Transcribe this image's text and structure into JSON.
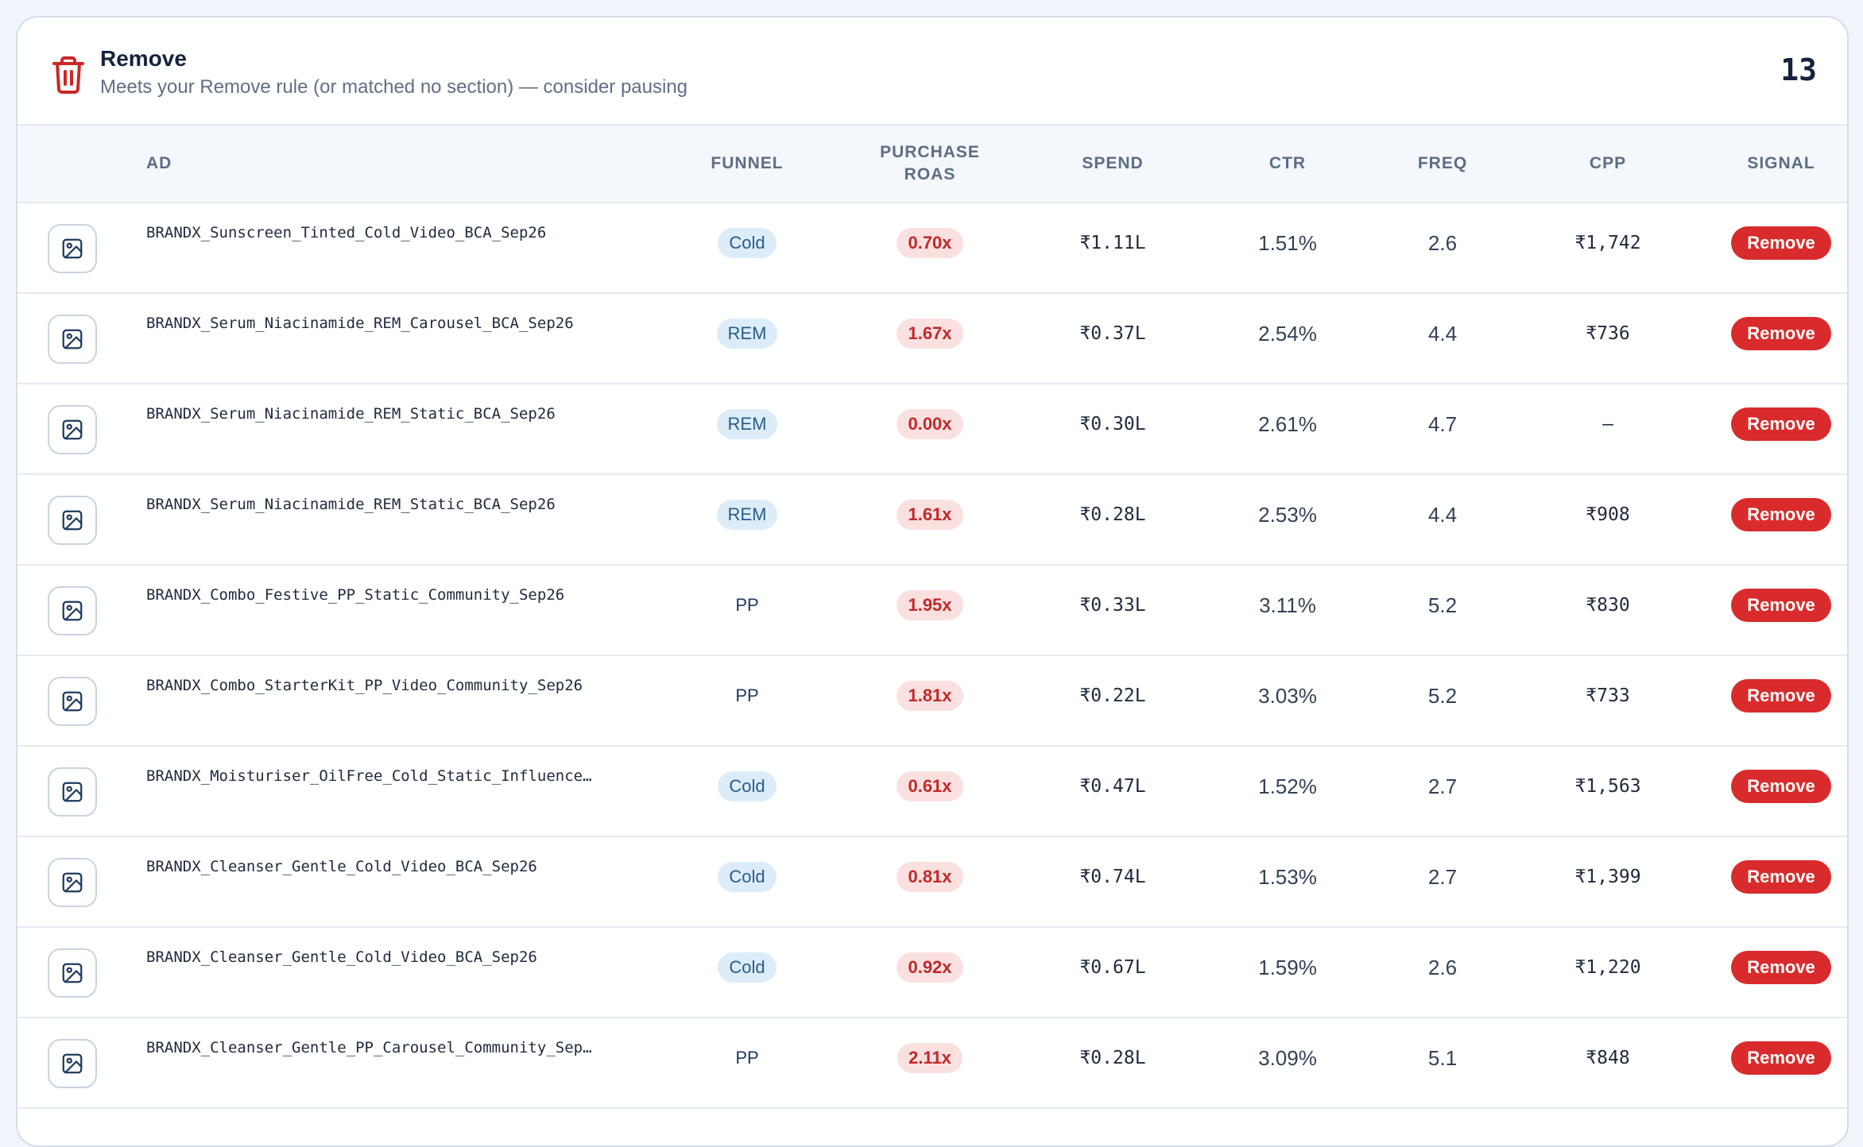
{
  "section": {
    "title": "Remove",
    "subtitle": "Meets your Remove rule (or matched no section) — consider pausing",
    "count": "13",
    "icon": "trash-icon"
  },
  "columns": {
    "ad": "AD",
    "funnel": "FUNNEL",
    "roas": "PURCHASE ROAS",
    "spend": "SPEND",
    "ctr": "CTR",
    "freq": "FREQ",
    "cpp": "CPP",
    "signal": "SIGNAL"
  },
  "rows": [
    {
      "ad": "BRANDX_Sunscreen_Tinted_Cold_Video_BCA_Sep26",
      "funnel": "Cold",
      "roas": "0.70x",
      "spend": "₹1.11L",
      "ctr": "1.51%",
      "freq": "2.6",
      "cpp": "₹1,742",
      "signal": "Remove"
    },
    {
      "ad": "BRANDX_Serum_Niacinamide_REM_Carousel_BCA_Sep26",
      "funnel": "REM",
      "roas": "1.67x",
      "spend": "₹0.37L",
      "ctr": "2.54%",
      "freq": "4.4",
      "cpp": "₹736",
      "signal": "Remove"
    },
    {
      "ad": "BRANDX_Serum_Niacinamide_REM_Static_BCA_Sep26",
      "funnel": "REM",
      "roas": "0.00x",
      "spend": "₹0.30L",
      "ctr": "2.61%",
      "freq": "4.7",
      "cpp": "—",
      "signal": "Remove"
    },
    {
      "ad": "BRANDX_Serum_Niacinamide_REM_Static_BCA_Sep26",
      "funnel": "REM",
      "roas": "1.61x",
      "spend": "₹0.28L",
      "ctr": "2.53%",
      "freq": "4.4",
      "cpp": "₹908",
      "signal": "Remove"
    },
    {
      "ad": "BRANDX_Combo_Festive_PP_Static_Community_Sep26",
      "funnel": "PP",
      "roas": "1.95x",
      "spend": "₹0.33L",
      "ctr": "3.11%",
      "freq": "5.2",
      "cpp": "₹830",
      "signal": "Remove"
    },
    {
      "ad": "BRANDX_Combo_StarterKit_PP_Video_Community_Sep26",
      "funnel": "PP",
      "roas": "1.81x",
      "spend": "₹0.22L",
      "ctr": "3.03%",
      "freq": "5.2",
      "cpp": "₹733",
      "signal": "Remove"
    },
    {
      "ad": "BRANDX_Moisturiser_OilFree_Cold_Static_Influence…",
      "funnel": "Cold",
      "roas": "0.61x",
      "spend": "₹0.47L",
      "ctr": "1.52%",
      "freq": "2.7",
      "cpp": "₹1,563",
      "signal": "Remove"
    },
    {
      "ad": "BRANDX_Cleanser_Gentle_Cold_Video_BCA_Sep26",
      "funnel": "Cold",
      "roas": "0.81x",
      "spend": "₹0.74L",
      "ctr": "1.53%",
      "freq": "2.7",
      "cpp": "₹1,399",
      "signal": "Remove"
    },
    {
      "ad": "BRANDX_Cleanser_Gentle_Cold_Video_BCA_Sep26",
      "funnel": "Cold",
      "roas": "0.92x",
      "spend": "₹0.67L",
      "ctr": "1.59%",
      "freq": "2.6",
      "cpp": "₹1,220",
      "signal": "Remove"
    },
    {
      "ad": "BRANDX_Cleanser_Gentle_PP_Carousel_Community_Sep…",
      "funnel": "PP",
      "roas": "2.11x",
      "spend": "₹0.28L",
      "ctr": "3.09%",
      "freq": "5.1",
      "cpp": "₹848",
      "signal": "Remove"
    }
  ],
  "colors": {
    "signal_remove": "#d92b2b",
    "roas_bad_bg": "#fbe0e0",
    "roas_bad_text": "#c12929",
    "funnel_chip_bg": "#dcecf9",
    "funnel_chip_text": "#285c8c"
  }
}
